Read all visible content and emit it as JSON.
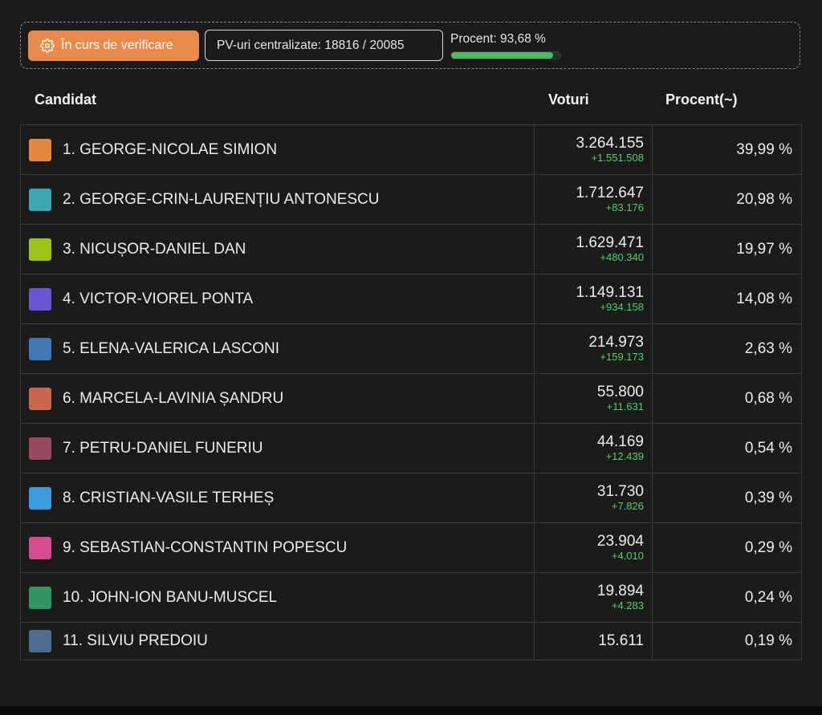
{
  "status": {
    "verify_label": "În curs de verificare",
    "pv_label": "PV-uri centralizate: 18816 / 20085",
    "percent_label": "Procent: 93,68 %",
    "progress_fraction": 0.9368,
    "accent_color": "#ea8a4a",
    "progress_color": "#4fbb5f"
  },
  "table": {
    "headers": {
      "candidate": "Candidat",
      "votes": "Voturi",
      "percent": "Procent(~)"
    },
    "rows": [
      {
        "name": "1. GEORGE-NICOLAE SIMION",
        "votes": "3.264.155",
        "delta": "+1.551.508",
        "percent": "39,99 %",
        "color": "#e6893f"
      },
      {
        "name": "2. GEORGE-CRIN-LAURENȚIU ANTONESCU",
        "votes": "1.712.647",
        "delta": "+83.176",
        "percent": "20,98 %",
        "color": "#3aa7b3"
      },
      {
        "name": "3. NICUȘOR-DANIEL DAN",
        "votes": "1.629.471",
        "delta": "+480.340",
        "percent": "19,97 %",
        "color": "#9bc417"
      },
      {
        "name": "4. VICTOR-VIOREL PONTA",
        "votes": "1.149.131",
        "delta": "+934.158",
        "percent": "14,08 %",
        "color": "#6c55d4"
      },
      {
        "name": "5. ELENA-VALERICA LASCONI",
        "votes": "214.973",
        "delta": "+159.173",
        "percent": "2,63 %",
        "color": "#3f78b4"
      },
      {
        "name": "6. MARCELA-LAVINIA ȘANDRU",
        "votes": "55.800",
        "delta": "+11.631",
        "percent": "0,68 %",
        "color": "#c96650"
      },
      {
        "name": "7. PETRU-DANIEL FUNERIU",
        "votes": "44.169",
        "delta": "+12.439",
        "percent": "0,54 %",
        "color": "#9a4760"
      },
      {
        "name": "8. CRISTIAN-VASILE TERHEȘ",
        "votes": "31.730",
        "delta": "+7.826",
        "percent": "0,39 %",
        "color": "#3c9ade"
      },
      {
        "name": "9. SEBASTIAN-CONSTANTIN POPESCU",
        "votes": "23.904",
        "delta": "+4.010",
        "percent": "0,29 %",
        "color": "#d64d8f"
      },
      {
        "name": "10. JOHN-ION BANU-MUSCEL",
        "votes": "19.894",
        "delta": "+4.283",
        "percent": "0,24 %",
        "color": "#31955f"
      },
      {
        "name": "11. SILVIU PREDOIU",
        "votes": "15.611",
        "delta": "",
        "percent": "0,19 %",
        "color": "#4e6e90"
      }
    ]
  }
}
